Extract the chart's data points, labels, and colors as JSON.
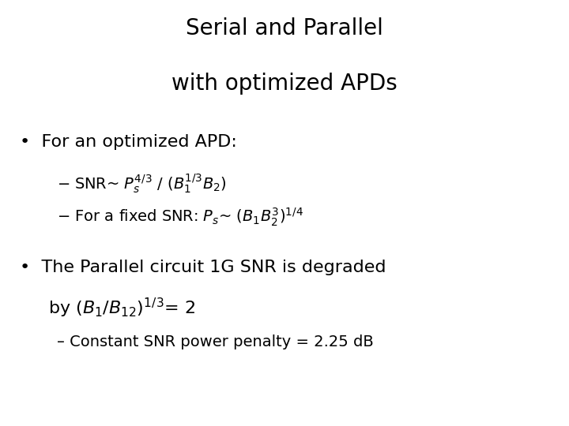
{
  "background_color": "#ffffff",
  "title_line1": "Serial and Parallel",
  "title_line2": "with optimized APDs",
  "title_fontsize": 20,
  "body_fontsize": 16,
  "sub_fontsize": 14,
  "title_color": "#000000",
  "bullet1_text": "For an optimized APD:",
  "sub1a": "– SNR~ $P_s^{4/3}$ / ($B_1^{1/3}B_2$)",
  "sub1b": "– For a fixed SNR: $P_s$~ ($B_1B_2^3$)$^{1/4}$",
  "bullet2_line1": "The Parallel circuit 1G SNR is degraded",
  "bullet2_line2": "by ($B_1/B_{12}$)$^{1/3}$= 2",
  "sub2": "– Constant SNR power penalty = 2.25 dB",
  "fig_width": 7.2,
  "fig_height": 5.4
}
